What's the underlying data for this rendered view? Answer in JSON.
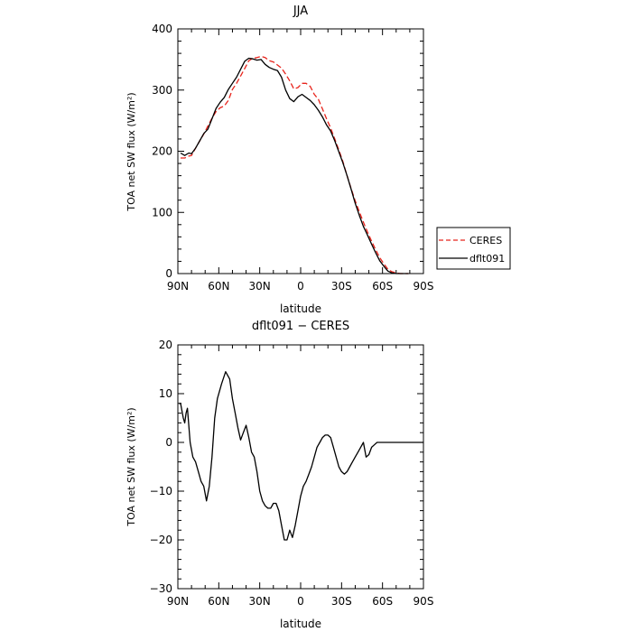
{
  "chart_data": [
    {
      "type": "line",
      "title": "JJA",
      "xlabel": "latitude",
      "ylabel": "TOA net SW flux (W/m²)",
      "xlim": [
        90,
        -90
      ],
      "ylim": [
        0,
        400
      ],
      "x_tick_values": [
        90,
        60,
        30,
        0,
        -30,
        -60,
        -90
      ],
      "x_tick_labels": [
        "90N",
        "60N",
        "30N",
        "0",
        "30S",
        "60S",
        "90S"
      ],
      "y_tick_labels": [
        "0",
        "100",
        "200",
        "300",
        "400"
      ],
      "legend": "right",
      "series": [
        {
          "name": "CERES",
          "color": "#e8241c",
          "style": "dashed",
          "x": [
            88,
            85,
            82,
            80,
            77,
            74,
            71,
            68,
            65,
            62,
            59,
            56,
            53,
            50,
            47,
            44,
            41,
            38,
            35,
            32,
            29,
            26,
            23,
            20,
            17,
            14,
            11,
            8,
            5,
            2,
            -1,
            -4,
            -7,
            -10,
            -13,
            -16,
            -19,
            -22,
            -25,
            -28,
            -31,
            -34,
            -37,
            -40,
            -43,
            -46,
            -49,
            -52,
            -55,
            -58,
            -61,
            -64,
            -67,
            -70,
            -73,
            -76,
            -79
          ],
          "y": [
            189,
            189,
            192,
            193,
            205,
            217,
            228,
            241,
            254,
            265,
            271,
            274,
            283,
            301,
            311,
            323,
            335,
            348,
            352,
            353,
            355,
            353,
            348,
            346,
            341,
            336,
            326,
            315,
            302,
            304,
            311,
            311,
            306,
            293,
            285,
            269,
            253,
            238,
            220,
            202,
            183,
            160,
            139,
            119,
            101,
            84,
            68,
            53,
            39,
            26,
            16,
            7,
            3,
            1,
            0,
            0,
            0
          ]
        },
        {
          "name": "dflt091",
          "color": "#000000",
          "style": "solid",
          "x": [
            88,
            85,
            82,
            80,
            77,
            74,
            71,
            68,
            65,
            62,
            59,
            56,
            53,
            50,
            47,
            44,
            41,
            38,
            35,
            32,
            29,
            26,
            23,
            20,
            17,
            14,
            11,
            8,
            5,
            2,
            -1,
            -4,
            -7,
            -10,
            -13,
            -16,
            -19,
            -22,
            -25,
            -28,
            -31,
            -34,
            -37,
            -40,
            -43,
            -46,
            -49,
            -52,
            -55,
            -58,
            -61,
            -64,
            -67,
            -70,
            -73,
            -76,
            -79
          ],
          "y": [
            197,
            193,
            197,
            196,
            205,
            217,
            229,
            236,
            253,
            270,
            280,
            288,
            301,
            311,
            321,
            334,
            347,
            352,
            351,
            349,
            350,
            342,
            337,
            334,
            332,
            321,
            300,
            286,
            281,
            289,
            293,
            288,
            283,
            276,
            267,
            256,
            243,
            233,
            217,
            199,
            181,
            160,
            138,
            115,
            95,
            77,
            63,
            48,
            34,
            21,
            12,
            4,
            1,
            0,
            0,
            0,
            0
          ]
        }
      ]
    },
    {
      "type": "line",
      "title": "dflt091 − CERES",
      "xlabel": "latitude",
      "ylabel": "TOA net SW flux (W/m²)",
      "xlim": [
        90,
        -90
      ],
      "ylim": [
        -30,
        20
      ],
      "x_tick_values": [
        90,
        60,
        30,
        0,
        -30,
        -60,
        -90
      ],
      "x_tick_labels": [
        "90N",
        "60N",
        "30N",
        "0",
        "30S",
        "60S",
        "90S"
      ],
      "y_tick_labels": [
        "−30",
        "−20",
        "−10",
        "0",
        "10",
        "20"
      ],
      "series": [
        {
          "name": "dflt091 − CERES",
          "color": "#000000",
          "style": "solid",
          "x": [
            89,
            88,
            86,
            85,
            84,
            83,
            81,
            79,
            77,
            75,
            73,
            71,
            69,
            67,
            65,
            63,
            61,
            58,
            55,
            52,
            50,
            48,
            46,
            44,
            42,
            40,
            38,
            36,
            34,
            32,
            30,
            28,
            26,
            24,
            22,
            20,
            18,
            16,
            14,
            12,
            10,
            8,
            6,
            4,
            2,
            0,
            -2,
            -4,
            -6,
            -8,
            -10,
            -12,
            -14,
            -16,
            -18,
            -20,
            -22,
            -24,
            -26,
            -28,
            -30,
            -32,
            -34,
            -36,
            -38,
            -40,
            -42,
            -44,
            -46,
            -48,
            -50,
            -52,
            -54,
            -56,
            -58,
            -60,
            -62,
            -64,
            -66,
            -68,
            -70,
            -72,
            -74,
            -76,
            -78,
            -80,
            -82,
            -84,
            -86,
            -88,
            -90
          ],
          "y": [
            8,
            8,
            5,
            4,
            6,
            7,
            0,
            -3,
            -4,
            -6,
            -8,
            -9,
            -12,
            -9,
            -3,
            5,
            9,
            12,
            14.5,
            13,
            9,
            6,
            3,
            0.5,
            2,
            3.5,
            1,
            -2,
            -3,
            -6,
            -10,
            -12,
            -13,
            -13.5,
            -13.5,
            -12.5,
            -12.5,
            -14,
            -17,
            -20,
            -20,
            -18,
            -19.5,
            -17,
            -14,
            -11,
            -9,
            -8,
            -6.5,
            -5,
            -3,
            -1,
            0,
            1,
            1.5,
            1.5,
            1,
            -1,
            -3,
            -5,
            -6,
            -6.5,
            -6,
            -5,
            -4,
            -3,
            -2,
            -1,
            0,
            -3,
            -2.5,
            -1,
            -0.5,
            0,
            0,
            0,
            0,
            0,
            0,
            0,
            0,
            0,
            0,
            0,
            0,
            0,
            0,
            0,
            0,
            0,
            0
          ]
        }
      ]
    }
  ]
}
